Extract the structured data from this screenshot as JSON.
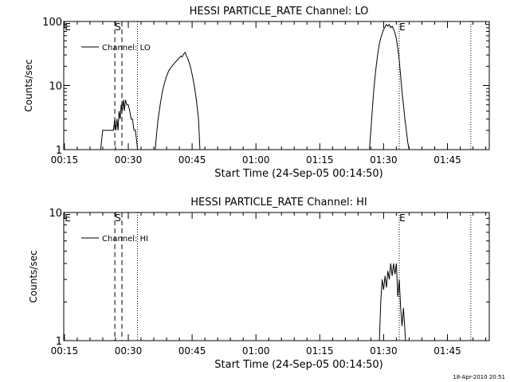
{
  "footer": {
    "timestamp": "18-Apr-2010 20:51"
  },
  "chart_data": [
    {
      "type": "line",
      "title": "HESSI PARTICLE_RATE Channel: LO",
      "xlabel": "Start Time (24-Sep-05 00:14:50)",
      "ylabel": "Counts/sec",
      "yscale": "log",
      "ylim": [
        1,
        100
      ],
      "xlim": [
        "00:14:50",
        "01:54:50"
      ],
      "xticks": [
        "00:15",
        "00:30",
        "00:45",
        "01:00",
        "01:15",
        "01:30",
        "01:45"
      ],
      "yticks": [
        "1",
        "10",
        "100"
      ],
      "legend": {
        "entries": [
          "Channel: LO"
        ],
        "placement": "top-left"
      },
      "markers": [
        {
          "label": "E",
          "time": "00:14:50",
          "style": "none"
        },
        {
          "label": "S",
          "time": "00:26:50",
          "style": "dashed"
        },
        {
          "label": "",
          "time": "00:28:30",
          "style": "dashed"
        },
        {
          "label": "",
          "time": "00:32:10",
          "style": "dotted"
        },
        {
          "label": "E",
          "time": "01:33:40",
          "style": "dotted"
        },
        {
          "label": "",
          "time": "01:50:30",
          "style": "dotted"
        }
      ],
      "series": [
        {
          "name": "Channel: LO",
          "segments": [
            {
              "x": [
                "00:23:30",
                "00:24:00",
                "00:25:00",
                "00:26:00",
                "00:26:30",
                "00:26:50",
                "00:27:05",
                "00:27:20",
                "00:27:35",
                "00:27:50",
                "00:28:05",
                "00:28:20",
                "00:28:35",
                "00:28:50",
                "00:29:05",
                "00:29:20",
                "00:29:40",
                "00:30:00",
                "00:30:20",
                "00:30:40",
                "00:31:00",
                "00:31:20",
                "00:31:40",
                "00:32:00",
                "00:32:10"
              ],
              "y": [
                1,
                2,
                2,
                2,
                2,
                3,
                2,
                3,
                2,
                4,
                3,
                5,
                4,
                6,
                4,
                6,
                5,
                5,
                4,
                3,
                3,
                2,
                2,
                1.3,
                1
              ]
            },
            {
              "x": [
                "00:36:20",
                "00:36:40",
                "00:37:00",
                "00:37:30",
                "00:38:00",
                "00:38:30",
                "00:39:00",
                "00:39:30",
                "00:40:00",
                "00:40:30",
                "00:41:00",
                "00:41:30",
                "00:42:00",
                "00:42:20",
                "00:42:40",
                "00:43:00",
                "00:43:20",
                "00:43:40",
                "00:44:00",
                "00:44:30",
                "00:45:00",
                "00:45:30",
                "00:46:00",
                "00:46:30",
                "00:46:50"
              ],
              "y": [
                1,
                1.8,
                3,
                5,
                8,
                11,
                14,
                17,
                19,
                21,
                23,
                25,
                27,
                29,
                28,
                31,
                33,
                29,
                26,
                21,
                15,
                10,
                6,
                3,
                1
              ]
            },
            {
              "x": [
                "01:26:40",
                "01:27:00",
                "01:27:20",
                "01:27:40",
                "01:28:00",
                "01:28:20",
                "01:28:40",
                "01:29:00",
                "01:29:20",
                "01:29:40",
                "01:30:00",
                "01:30:20",
                "01:30:40",
                "01:31:00",
                "01:31:20",
                "01:31:40",
                "01:32:00",
                "01:32:20",
                "01:32:40",
                "01:33:00",
                "01:33:20",
                "01:33:40",
                "01:34:00",
                "01:34:20",
                "01:34:40",
                "01:35:00",
                "01:35:20",
                "01:35:40",
                "01:36:00"
              ],
              "y": [
                1,
                2,
                4,
                8,
                14,
                22,
                33,
                45,
                55,
                65,
                75,
                82,
                90,
                84,
                90,
                80,
                84,
                76,
                66,
                54,
                38,
                25,
                14,
                8,
                5,
                3,
                2,
                1.3,
                1
              ]
            }
          ]
        }
      ]
    },
    {
      "type": "line",
      "title": "HESSI PARTICLE_RATE Channel: HI",
      "xlabel": "Start Time (24-Sep-05 00:14:50)",
      "ylabel": "Counts/sec",
      "yscale": "log",
      "ylim": [
        1,
        10
      ],
      "xlim": [
        "00:14:50",
        "01:54:50"
      ],
      "xticks": [
        "00:15",
        "00:30",
        "00:45",
        "01:00",
        "01:15",
        "01:30",
        "01:45"
      ],
      "yticks": [
        "1",
        "10"
      ],
      "legend": {
        "entries": [
          "Channel: HI"
        ],
        "placement": "top-left"
      },
      "markers": [
        {
          "label": "E",
          "time": "00:14:50",
          "style": "none"
        },
        {
          "label": "S",
          "time": "00:26:50",
          "style": "dashed"
        },
        {
          "label": "",
          "time": "00:28:30",
          "style": "dashed"
        },
        {
          "label": "",
          "time": "00:32:10",
          "style": "dotted"
        },
        {
          "label": "E",
          "time": "01:33:40",
          "style": "dotted"
        },
        {
          "label": "",
          "time": "01:50:30",
          "style": "dotted"
        }
      ],
      "series": [
        {
          "name": "Channel: HI",
          "segments": [
            {
              "x": [
                "01:29:00",
                "01:29:20",
                "01:29:40",
                "01:30:00",
                "01:30:20",
                "01:30:40",
                "01:31:00",
                "01:31:20",
                "01:31:40",
                "01:32:00",
                "01:32:20",
                "01:32:40",
                "01:33:00",
                "01:33:20",
                "01:33:40",
                "01:34:00",
                "01:34:20",
                "01:34:40",
                "01:35:00",
                "01:35:10"
              ],
              "y": [
                1,
                2,
                3,
                2.5,
                3.2,
                2.6,
                3.5,
                3,
                4,
                3.2,
                4,
                3.3,
                4,
                2.2,
                3,
                1.8,
                1.3,
                1.8,
                1.2,
                1
              ]
            }
          ]
        }
      ]
    }
  ]
}
